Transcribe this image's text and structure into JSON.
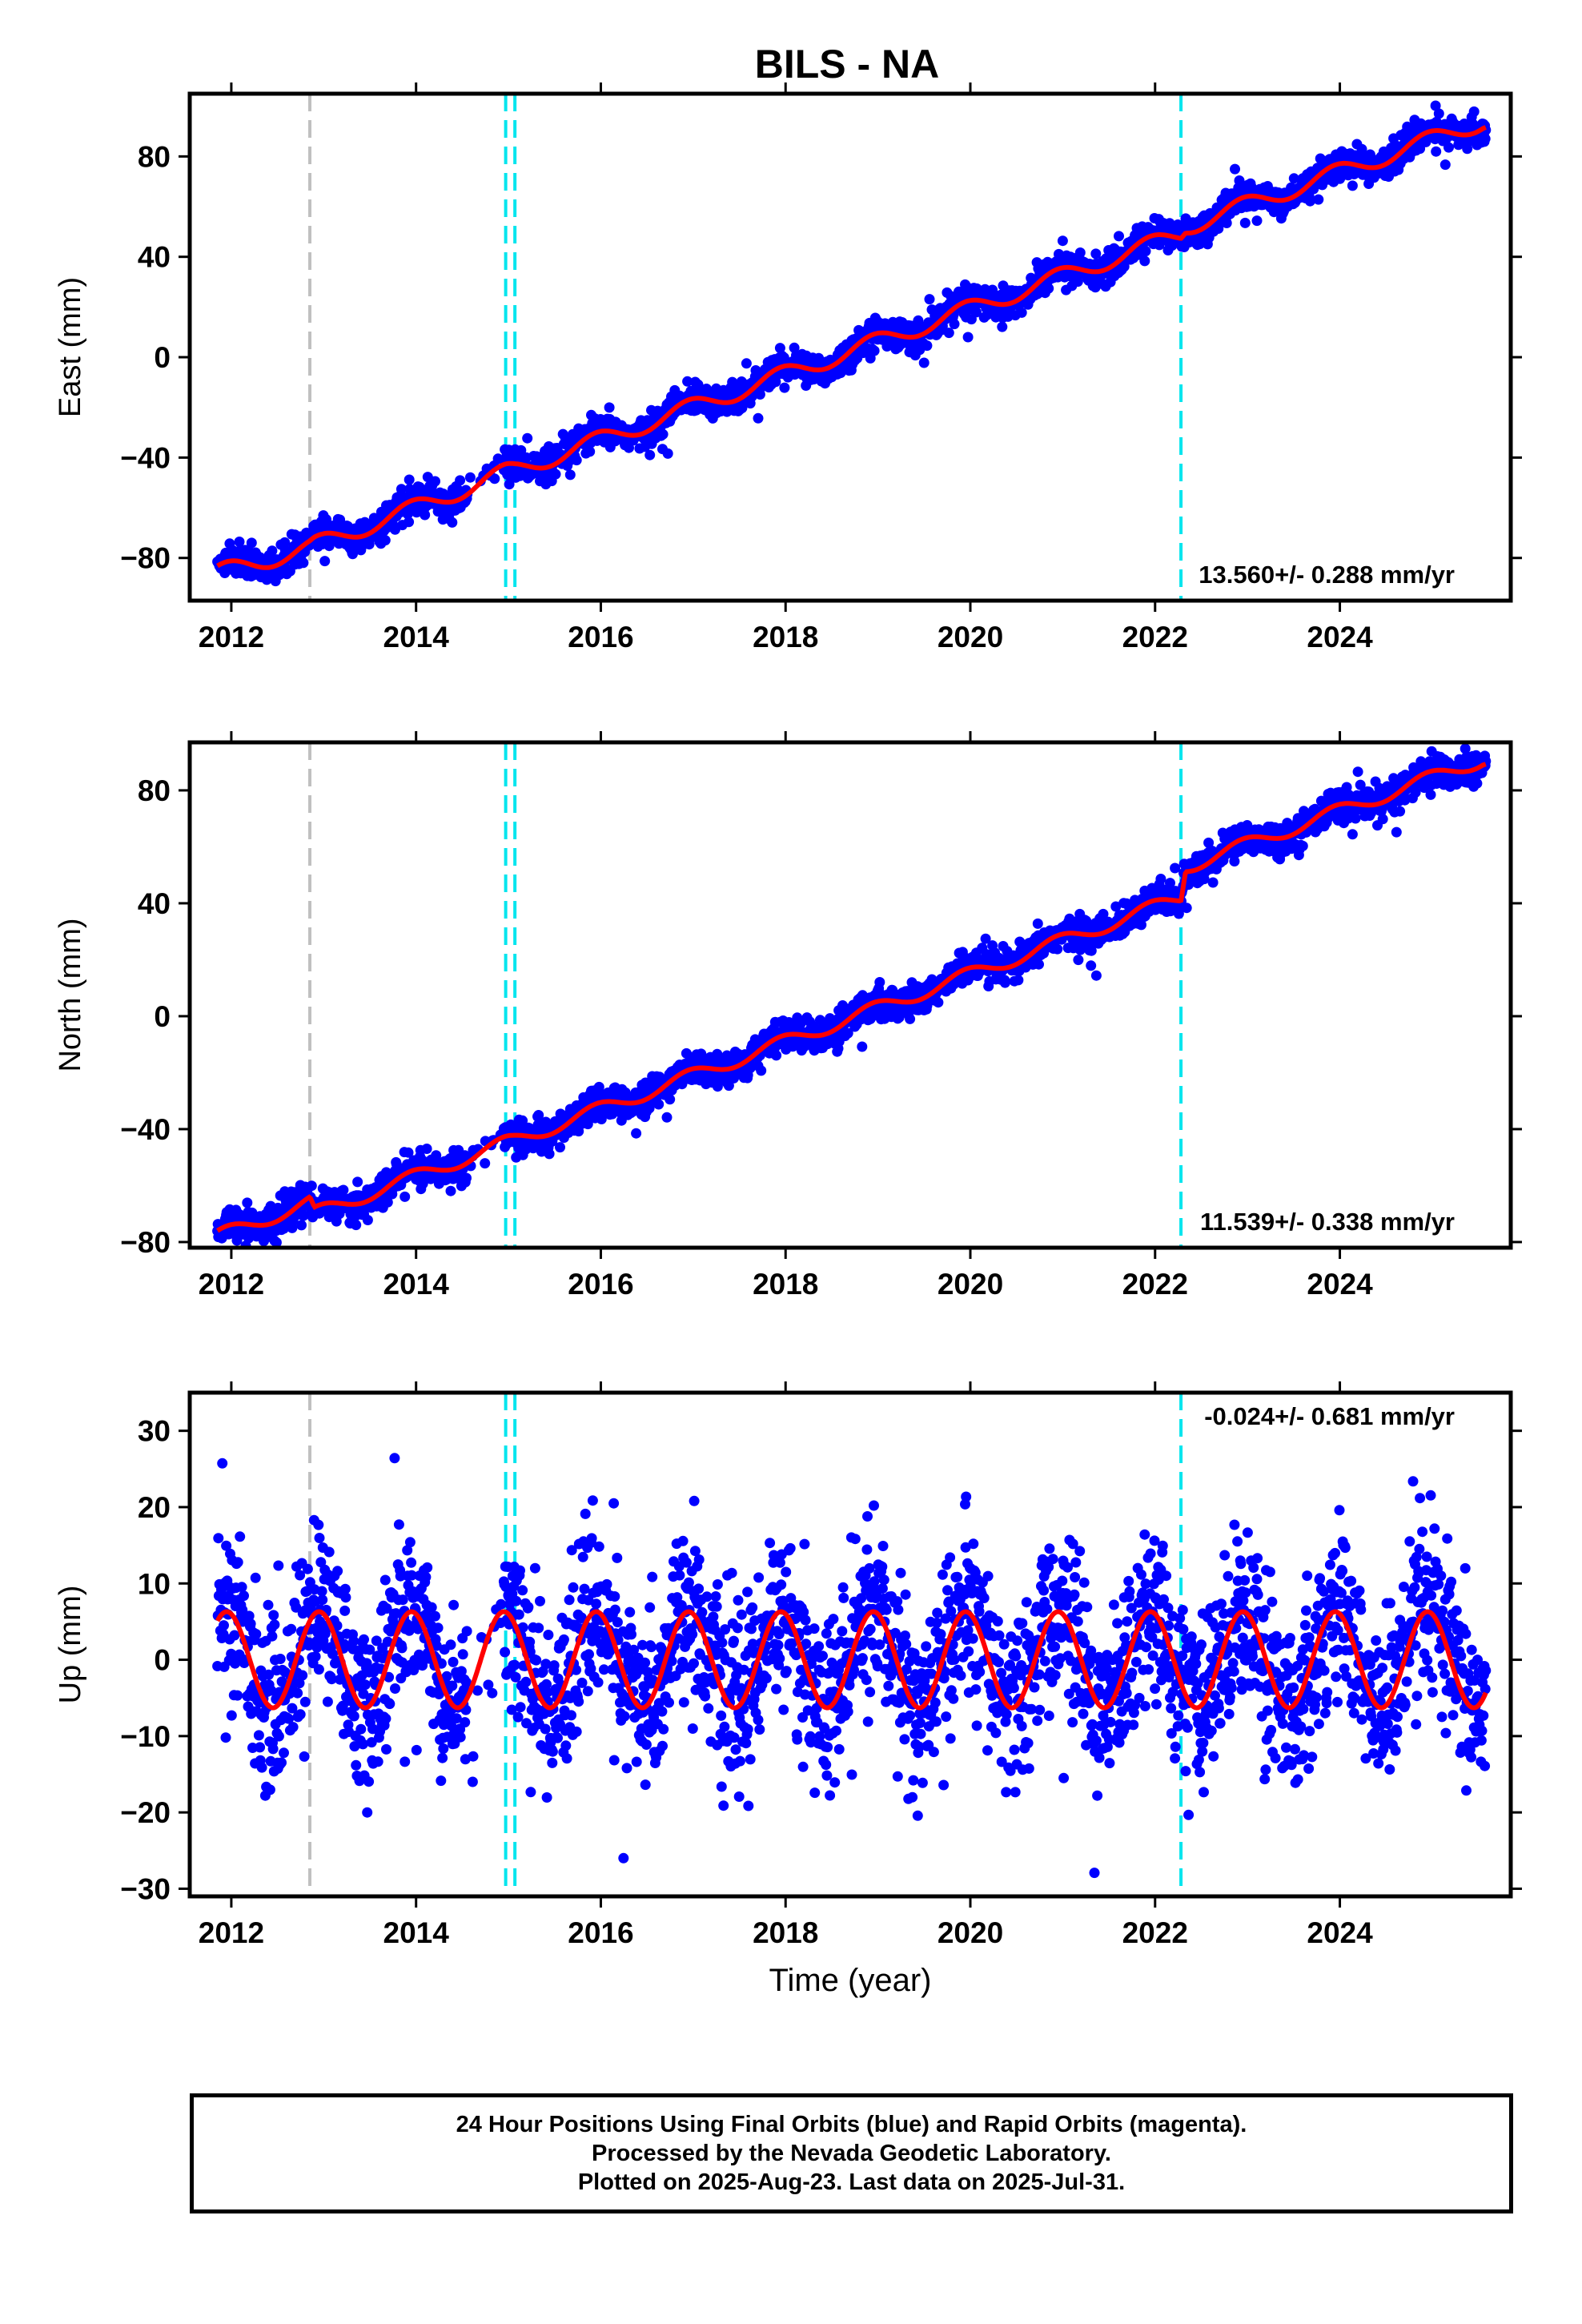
{
  "chart_data": {
    "title": "BILS - NA",
    "xlabel": "Time (year)",
    "xlim": [
      2011.55,
      2025.85
    ],
    "xticks": [
      2012,
      2014,
      2016,
      2018,
      2020,
      2022,
      2024
    ],
    "xtick_labels": [
      "2012",
      "2014",
      "2016",
      "2018",
      "2020",
      "2022",
      "2024"
    ],
    "data_span": [
      2011.85,
      2025.58
    ],
    "event_lines": [
      {
        "x": 2012.85,
        "color": "#c0c0c0"
      },
      {
        "x": 2014.97,
        "color": "#00e5ee"
      },
      {
        "x": 2015.07,
        "color": "#00e5ee"
      },
      {
        "x": 2022.28,
        "color": "#00e5ee"
      }
    ],
    "colors": {
      "observations": "#0000ff",
      "model": "#ff0000"
    },
    "panels": [
      {
        "type": "scatter",
        "ylabel": "East (mm)",
        "ylim": [
          -97,
          105
        ],
        "yticks": [
          -80,
          -40,
          0,
          40,
          80
        ],
        "ytick_labels": [
          "−80",
          "−40",
          "0",
          "40",
          "80"
        ],
        "rate_text": "13.560+/- 0.288 mm/yr",
        "model": {
          "knots": [
            [
              2011.85,
              -86
            ],
            [
              2012.85,
              -76
            ],
            [
              2012.9,
              -75
            ],
            [
              2014.0,
              -60
            ],
            [
              2014.97,
              -46
            ],
            [
              2015.07,
              -45
            ],
            [
              2022.28,
              49
            ],
            [
              2022.33,
              52
            ],
            [
              2025.55,
              94
            ]
          ],
          "seasonal_amplitude": 3.5
        },
        "noise": 3.0,
        "series": [
          {
            "name": "24 Hour Positions",
            "style": "points"
          }
        ]
      },
      {
        "type": "scatter",
        "ylabel": "North (mm)",
        "ylim": [
          -82,
          97
        ],
        "yticks": [
          -80,
          -40,
          0,
          40,
          80
        ],
        "ytick_labels": [
          "−80",
          "−40",
          "0",
          "40",
          "80"
        ],
        "rate_text": "11.539+/- 0.338 mm/yr",
        "model": {
          "knots": [
            [
              2011.85,
              -78
            ],
            [
              2012.85,
              -66
            ],
            [
              2012.9,
              -70
            ],
            [
              2014.97,
              -45
            ],
            [
              2015.07,
              -44
            ],
            [
              2022.28,
              42
            ],
            [
              2022.33,
              53
            ],
            [
              2025.55,
              91
            ]
          ],
          "seasonal_amplitude": 2.5
        },
        "noise": 2.8,
        "series": [
          {
            "name": "24 Hour Positions",
            "style": "points"
          }
        ]
      },
      {
        "type": "scatter",
        "ylabel": "Up (mm)",
        "ylim": [
          -31,
          35
        ],
        "yticks": [
          -30,
          -20,
          -10,
          0,
          10,
          20,
          30
        ],
        "ytick_labels": [
          "−30",
          "−20",
          "−10",
          "0",
          "10",
          "20",
          "30"
        ],
        "rate_text": "-0.024+/- 0.681 mm/yr",
        "model": {
          "knots": [
            [
              2011.85,
              0
            ],
            [
              2025.55,
              0
            ]
          ],
          "seasonal_amplitude": 6.3,
          "seasonal_amplitude_after_2022": 6.3
        },
        "noise": 5.5,
        "series": [
          {
            "name": "24 Hour Positions",
            "style": "points"
          }
        ]
      }
    ]
  },
  "footer": {
    "line1": "24 Hour Positions Using Final Orbits (blue) and Rapid Orbits (magenta).",
    "line2": "Processed by the Nevada Geodetic Laboratory.",
    "line3": "Plotted on 2025-Aug-23. Last data on 2025-Jul-31."
  }
}
